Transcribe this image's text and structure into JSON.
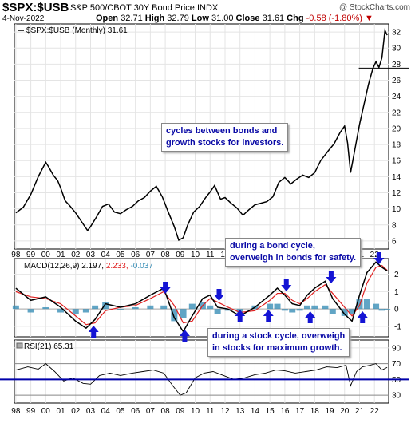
{
  "header": {
    "symbol": "$SPX:$USB",
    "long_name": "S&P 500/CBOT 30Y Bond Price INDX",
    "watermark": "@ StockCharts.com",
    "date": "4-Nov-2022",
    "open_label": "Open",
    "open": "32.71",
    "high_label": "High",
    "high": "32.79",
    "low_label": "Low",
    "low": "31.00",
    "close_label": "Close",
    "close": "31.61",
    "chg_label": "Chg",
    "chg": "-0.58 (-1.80%)"
  },
  "colors": {
    "price": "#000000",
    "macd": "#000000",
    "signal": "#e02020",
    "histogram": "#3a8fb7",
    "rsi": "#000000",
    "arrow": "#1414d4",
    "annotation_text": "#0a0aa6",
    "rsi_band": "#0000aa"
  },
  "annotations": [
    {
      "text1": "cycles between bonds and",
      "text2": "growth stocks for investors."
    },
    {
      "text1": "during a bond cycle,",
      "text2": "overweigh in bonds for safety."
    },
    {
      "text1": "during a stock cycle, overweigh",
      "text2": "in stocks for maximum growth."
    }
  ],
  "chart_data": [
    {
      "type": "line",
      "legend": "$SPX:$USB (Monthly) 31.61",
      "x_tick_labels": [
        "98",
        "99",
        "00",
        "01",
        "02",
        "03",
        "04",
        "05",
        "06",
        "07",
        "08",
        "09",
        "10",
        "11",
        "12",
        "13",
        "14",
        "15",
        "16",
        "17",
        "18",
        "19",
        "20",
        "21",
        "22"
      ],
      "y_tick_labels": [
        "6",
        "8",
        "10",
        "12",
        "14",
        "16",
        "18",
        "20",
        "22",
        "24",
        "26",
        "28",
        "30",
        "32"
      ],
      "ylim": [
        5,
        33
      ],
      "x": [
        1998.0,
        1998.5,
        1999.0,
        1999.5,
        2000.0,
        2000.2,
        2000.5,
        2000.8,
        2001.0,
        2001.3,
        2001.6,
        2002.0,
        2002.4,
        2002.8,
        2003.0,
        2003.4,
        2003.8,
        2004.2,
        2004.6,
        2005.0,
        2005.4,
        2005.8,
        2006.2,
        2006.6,
        2007.0,
        2007.4,
        2007.8,
        2008.2,
        2008.6,
        2008.9,
        2009.2,
        2009.5,
        2009.9,
        2010.3,
        2010.7,
        2011.0,
        2011.3,
        2011.7,
        2012.0,
        2012.4,
        2012.8,
        2013.2,
        2013.6,
        2014.0,
        2014.4,
        2014.8,
        2015.2,
        2015.6,
        2016.0,
        2016.4,
        2016.8,
        2017.2,
        2017.6,
        2018.0,
        2018.4,
        2018.9,
        2019.3,
        2019.7,
        2020.0,
        2020.2,
        2020.4,
        2020.7,
        2021.0,
        2021.3,
        2021.6,
        2021.9,
        2022.1,
        2022.3,
        2022.5,
        2022.7,
        2022.85
      ],
      "y": [
        9.5,
        10.2,
        11.8,
        14.0,
        15.8,
        15.2,
        14.2,
        13.5,
        12.6,
        11.0,
        10.4,
        9.5,
        8.4,
        7.3,
        7.8,
        9.0,
        10.3,
        10.6,
        9.6,
        9.4,
        9.9,
        10.3,
        11.0,
        11.4,
        12.2,
        12.8,
        11.5,
        9.6,
        7.8,
        6.1,
        6.4,
        8.0,
        9.6,
        10.3,
        11.4,
        12.1,
        12.9,
        11.2,
        11.4,
        10.7,
        10.1,
        9.2,
        9.9,
        10.5,
        10.7,
        10.9,
        11.5,
        13.3,
        13.9,
        13.1,
        13.7,
        14.2,
        13.9,
        14.5,
        16.0,
        17.2,
        18.1,
        19.5,
        20.3,
        18.2,
        14.5,
        17.5,
        20.5,
        23.0,
        25.5,
        27.5,
        28.3,
        27.6,
        28.8,
        32.2,
        31.6
      ]
    },
    {
      "type": "line",
      "legend_name": "MACD(12,26,9)",
      "legend_macd": "2.197",
      "legend_signal": "2.233",
      "legend_hist": "-0.037",
      "y_tick_labels": [
        "-1",
        "0",
        "1",
        "2"
      ],
      "ylim": [
        -1.6,
        2.9
      ],
      "x": [
        1998.0,
        1999.0,
        2000.0,
        2001.0,
        2002.0,
        2002.7,
        2003.3,
        2004.0,
        2005.0,
        2006.0,
        2007.0,
        2007.9,
        2008.6,
        2009.2,
        2009.8,
        2010.5,
        2011.0,
        2011.5,
        2012.2,
        2013.0,
        2014.0,
        2015.0,
        2015.5,
        2016.0,
        2016.5,
        2017.0,
        2017.5,
        2018.0,
        2018.7,
        2019.2,
        2020.0,
        2020.5,
        2021.0,
        2021.5,
        2022.1,
        2022.5,
        2022.85
      ],
      "macd": [
        1.2,
        0.5,
        0.7,
        0.1,
        -0.7,
        -1.1,
        -0.6,
        0.3,
        0.1,
        0.3,
        0.8,
        1.2,
        -0.5,
        -1.3,
        -0.4,
        0.6,
        0.8,
        0.1,
        0.0,
        -0.4,
        0.1,
        0.8,
        1.2,
        0.8,
        0.3,
        0.2,
        0.8,
        1.2,
        1.6,
        0.6,
        -0.3,
        -0.7,
        0.8,
        2.1,
        2.7,
        2.4,
        2.2
      ],
      "signal": [
        1.0,
        0.7,
        0.6,
        0.3,
        -0.4,
        -0.9,
        -0.8,
        -0.1,
        0.1,
        0.2,
        0.6,
        1.0,
        0.2,
        -0.8,
        -0.7,
        0.2,
        0.6,
        0.4,
        0.1,
        -0.2,
        -0.1,
        0.5,
        0.9,
        0.9,
        0.5,
        0.3,
        0.6,
        1.0,
        1.4,
        0.9,
        0.1,
        -0.4,
        0.2,
        1.5,
        2.4,
        2.5,
        2.23
      ],
      "histogram": [
        0.2,
        -0.2,
        0.1,
        -0.2,
        -0.3,
        -0.2,
        0.2,
        0.4,
        0.0,
        0.1,
        0.2,
        0.2,
        -0.7,
        -0.5,
        0.3,
        0.4,
        0.2,
        -0.3,
        -0.1,
        -0.2,
        0.2,
        0.3,
        0.3,
        -0.1,
        -0.2,
        -0.1,
        0.2,
        0.2,
        0.2,
        -0.3,
        -0.4,
        -0.3,
        0.6,
        0.6,
        0.3,
        -0.1,
        -0.04
      ]
    },
    {
      "type": "line",
      "legend_name": "RSI(21)",
      "legend_value": "65.31",
      "y_tick_labels": [
        "30",
        "50",
        "70",
        "90"
      ],
      "ylim": [
        20,
        100
      ],
      "x": [
        1998.0,
        1998.8,
        1999.5,
        2000.0,
        2000.6,
        2001.2,
        2001.8,
        2002.5,
        2003.0,
        2003.6,
        2004.3,
        2005.0,
        2005.8,
        2006.5,
        2007.2,
        2007.9,
        2008.5,
        2009.0,
        2009.4,
        2010.0,
        2010.6,
        2011.2,
        2011.9,
        2012.6,
        2013.3,
        2014.0,
        2014.7,
        2015.4,
        2016.0,
        2016.7,
        2017.4,
        2018.1,
        2018.8,
        2019.5,
        2020.1,
        2020.4,
        2020.8,
        2021.2,
        2021.7,
        2022.1,
        2022.5,
        2022.85
      ],
      "y": [
        62,
        66,
        63,
        70,
        60,
        48,
        52,
        45,
        44,
        55,
        58,
        55,
        58,
        60,
        62,
        58,
        42,
        30,
        33,
        52,
        58,
        60,
        55,
        50,
        52,
        56,
        58,
        62,
        61,
        58,
        60,
        62,
        66,
        65,
        68,
        42,
        60,
        66,
        68,
        70,
        62,
        65.3
      ]
    }
  ]
}
